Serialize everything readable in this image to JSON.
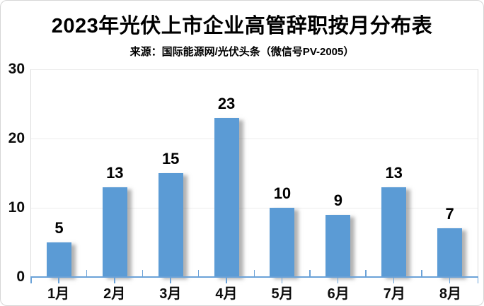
{
  "frame": {
    "background": "#ffffff",
    "border_color": "#d6d6d6"
  },
  "chart_data": {
    "type": "bar",
    "title": "2023年光伏上市企业高管辞职按月分布表",
    "source": "来源：国际能源网/光伏头条（微信号PV-2005）",
    "categories": [
      "1月",
      "2月",
      "3月",
      "4月",
      "5月",
      "6月",
      "7月",
      "8月"
    ],
    "values": [
      5,
      13,
      15,
      23,
      10,
      9,
      13,
      7
    ],
    "xlabel": "",
    "ylabel": "",
    "ylim": [
      0,
      30
    ],
    "y_tick_labels": [
      "30",
      "20",
      "10",
      "0"
    ],
    "grid": "horizontal-light",
    "legend": "none",
    "data_labels": "above-bars",
    "bar_color": "#5b9bd5",
    "axis_color": "#6ba2d8",
    "gridline_color": "#ececec",
    "plot_border_color": "#dcdcdc",
    "text_color": "#000000"
  }
}
